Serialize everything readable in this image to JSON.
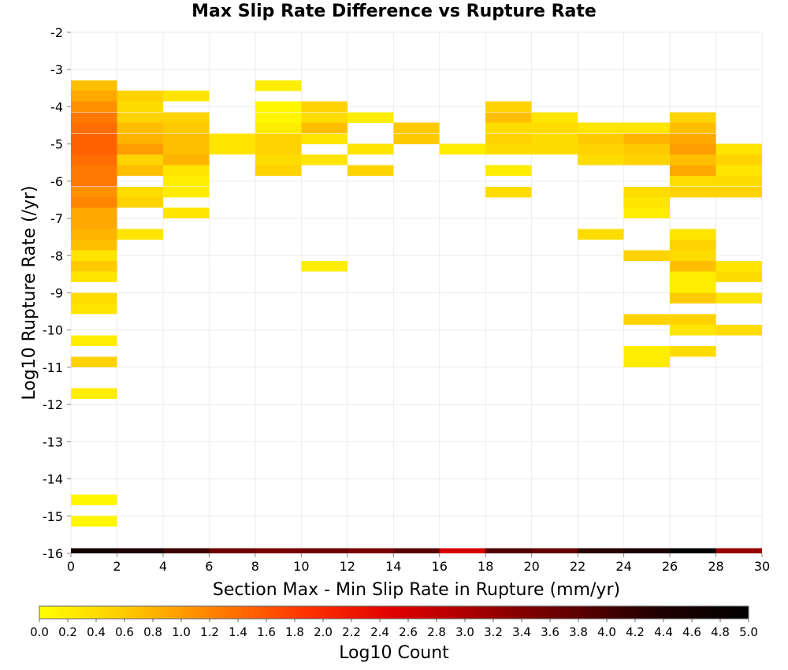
{
  "chart_data": {
    "type": "heatmap",
    "title": "Max Slip Rate Difference vs Rupture Rate",
    "xlabel": "Section Max - Min Slip Rate in Rupture (mm/yr)",
    "ylabel": "Log10 Rupture Rate (/yr)",
    "xlim": [
      0,
      30
    ],
    "ylim": [
      -16,
      -2
    ],
    "x_ticks": [
      "0",
      "2",
      "4",
      "6",
      "8",
      "10",
      "12",
      "14",
      "16",
      "18",
      "20",
      "22",
      "24",
      "26",
      "28",
      "30"
    ],
    "y_ticks": [
      "-2",
      "-3",
      "-4",
      "-5",
      "-6",
      "-7",
      "-8",
      "-9",
      "-10",
      "-11",
      "-12",
      "-13",
      "-14",
      "-15",
      "-16"
    ],
    "x_bin_width": 2,
    "y_bin_height": 0.2857,
    "grid": true,
    "colorbar": {
      "label": "Log10 Count",
      "range": [
        0,
        5
      ],
      "ticks": [
        "0.0",
        "0.2",
        "0.4",
        "0.6",
        "0.8",
        "1.0",
        "1.2",
        "1.4",
        "1.6",
        "1.8",
        "2.0",
        "2.2",
        "2.4",
        "2.6",
        "2.8",
        "3.0",
        "3.2",
        "3.4",
        "3.6",
        "3.8",
        "4.0",
        "4.2",
        "4.4",
        "4.6",
        "4.8",
        "5.0"
      ],
      "colors": [
        "#ffff00",
        "#ffc800",
        "#ff7f00",
        "#ff3300",
        "#e00000",
        "#a00000",
        "#600000",
        "#200000",
        "#000000"
      ]
    },
    "cells": [
      {
        "x": 1,
        "y": -3.43,
        "value": 0.7
      },
      {
        "x": 1,
        "y": -3.71,
        "value": 0.9
      },
      {
        "x": 1,
        "y": -4.0,
        "value": 1.1
      },
      {
        "x": 1,
        "y": -4.29,
        "value": 1.3
      },
      {
        "x": 1,
        "y": -4.57,
        "value": 1.4
      },
      {
        "x": 1,
        "y": -4.86,
        "value": 1.5
      },
      {
        "x": 1,
        "y": -5.14,
        "value": 1.5
      },
      {
        "x": 1,
        "y": -5.43,
        "value": 1.4
      },
      {
        "x": 1,
        "y": -5.71,
        "value": 1.3
      },
      {
        "x": 1,
        "y": -6.0,
        "value": 1.3
      },
      {
        "x": 1,
        "y": -6.29,
        "value": 1.1
      },
      {
        "x": 1,
        "y": -6.57,
        "value": 1.2
      },
      {
        "x": 1,
        "y": -6.86,
        "value": 0.9
      },
      {
        "x": 1,
        "y": -7.14,
        "value": 0.9
      },
      {
        "x": 1,
        "y": -7.43,
        "value": 0.8
      },
      {
        "x": 1,
        "y": -7.71,
        "value": 0.7
      },
      {
        "x": 1,
        "y": -8.0,
        "value": 0.3
      },
      {
        "x": 1,
        "y": -8.29,
        "value": 0.6
      },
      {
        "x": 1,
        "y": -8.57,
        "value": 0.3
      },
      {
        "x": 1,
        "y": -9.14,
        "value": 0.4
      },
      {
        "x": 1,
        "y": -9.43,
        "value": 0.3
      },
      {
        "x": 1,
        "y": -10.29,
        "value": 0.2
      },
      {
        "x": 1,
        "y": -10.86,
        "value": 0.5
      },
      {
        "x": 1,
        "y": -11.71,
        "value": 0.2
      },
      {
        "x": 1,
        "y": -14.57,
        "value": 0.1
      },
      {
        "x": 1,
        "y": -15.14,
        "value": 0.1
      },
      {
        "x": 3,
        "y": -3.71,
        "value": 0.5
      },
      {
        "x": 3,
        "y": -4.0,
        "value": 0.4
      },
      {
        "x": 3,
        "y": -4.29,
        "value": 0.5
      },
      {
        "x": 3,
        "y": -4.57,
        "value": 0.7
      },
      {
        "x": 3,
        "y": -4.86,
        "value": 0.8
      },
      {
        "x": 3,
        "y": -5.14,
        "value": 1.0
      },
      {
        "x": 3,
        "y": -5.43,
        "value": 0.5
      },
      {
        "x": 3,
        "y": -5.71,
        "value": 0.7
      },
      {
        "x": 3,
        "y": -6.29,
        "value": 0.4
      },
      {
        "x": 3,
        "y": -6.57,
        "value": 0.5
      },
      {
        "x": 3,
        "y": -7.43,
        "value": 0.3
      },
      {
        "x": 5,
        "y": -3.71,
        "value": 0.3
      },
      {
        "x": 5,
        "y": -4.29,
        "value": 0.5
      },
      {
        "x": 5,
        "y": -4.57,
        "value": 0.6
      },
      {
        "x": 5,
        "y": -4.86,
        "value": 0.7
      },
      {
        "x": 5,
        "y": -5.14,
        "value": 0.7
      },
      {
        "x": 5,
        "y": -5.43,
        "value": 0.8
      },
      {
        "x": 5,
        "y": -5.71,
        "value": 0.3
      },
      {
        "x": 5,
        "y": -6.0,
        "value": 0.2
      },
      {
        "x": 5,
        "y": -6.29,
        "value": 0.2
      },
      {
        "x": 5,
        "y": -6.86,
        "value": 0.3
      },
      {
        "x": 7,
        "y": -4.86,
        "value": 0.3
      },
      {
        "x": 7,
        "y": -5.14,
        "value": 0.3
      },
      {
        "x": 9,
        "y": -3.43,
        "value": 0.2
      },
      {
        "x": 9,
        "y": -4.0,
        "value": 0.1
      },
      {
        "x": 9,
        "y": -4.29,
        "value": 0.1
      },
      {
        "x": 9,
        "y": -4.57,
        "value": 0.2
      },
      {
        "x": 9,
        "y": -4.86,
        "value": 0.5
      },
      {
        "x": 9,
        "y": -5.14,
        "value": 0.5
      },
      {
        "x": 9,
        "y": -5.43,
        "value": 0.4
      },
      {
        "x": 9,
        "y": -5.71,
        "value": 0.5
      },
      {
        "x": 11,
        "y": -4.0,
        "value": 0.5
      },
      {
        "x": 11,
        "y": -4.29,
        "value": 0.4
      },
      {
        "x": 11,
        "y": -4.57,
        "value": 0.7
      },
      {
        "x": 11,
        "y": -4.86,
        "value": 0.3
      },
      {
        "x": 11,
        "y": -5.43,
        "value": 0.3
      },
      {
        "x": 11,
        "y": -8.29,
        "value": 0.2
      },
      {
        "x": 13,
        "y": -4.29,
        "value": 0.2
      },
      {
        "x": 13,
        "y": -5.14,
        "value": 0.3
      },
      {
        "x": 13,
        "y": -5.71,
        "value": 0.5
      },
      {
        "x": 15,
        "y": -4.57,
        "value": 0.6
      },
      {
        "x": 15,
        "y": -4.86,
        "value": 0.6
      },
      {
        "x": 17,
        "y": -5.14,
        "value": 0.2
      },
      {
        "x": 19,
        "y": -4.0,
        "value": 0.5
      },
      {
        "x": 19,
        "y": -4.29,
        "value": 0.7
      },
      {
        "x": 19,
        "y": -4.57,
        "value": 0.4
      },
      {
        "x": 19,
        "y": -4.86,
        "value": 0.5
      },
      {
        "x": 19,
        "y": -5.14,
        "value": 0.4
      },
      {
        "x": 19,
        "y": -5.71,
        "value": 0.2
      },
      {
        "x": 19,
        "y": -6.29,
        "value": 0.4
      },
      {
        "x": 21,
        "y": -4.29,
        "value": 0.3
      },
      {
        "x": 21,
        "y": -4.57,
        "value": 0.4
      },
      {
        "x": 21,
        "y": -4.86,
        "value": 0.4
      },
      {
        "x": 21,
        "y": -5.14,
        "value": 0.4
      },
      {
        "x": 23,
        "y": -4.57,
        "value": 0.3
      },
      {
        "x": 23,
        "y": -4.86,
        "value": 0.6
      },
      {
        "x": 23,
        "y": -5.14,
        "value": 0.5
      },
      {
        "x": 23,
        "y": -5.43,
        "value": 0.4
      },
      {
        "x": 23,
        "y": -7.43,
        "value": 0.4
      },
      {
        "x": 25,
        "y": -4.57,
        "value": 0.3
      },
      {
        "x": 25,
        "y": -4.86,
        "value": 0.8
      },
      {
        "x": 25,
        "y": -5.14,
        "value": 0.6
      },
      {
        "x": 25,
        "y": -5.43,
        "value": 0.5
      },
      {
        "x": 25,
        "y": -6.29,
        "value": 0.4
      },
      {
        "x": 25,
        "y": -6.57,
        "value": 0.3
      },
      {
        "x": 25,
        "y": -6.86,
        "value": 0.2
      },
      {
        "x": 25,
        "y": -8.0,
        "value": 0.5
      },
      {
        "x": 25,
        "y": -9.71,
        "value": 0.5
      },
      {
        "x": 25,
        "y": -10.57,
        "value": 0.2
      },
      {
        "x": 25,
        "y": -10.86,
        "value": 0.2
      },
      {
        "x": 27,
        "y": -4.29,
        "value": 0.5
      },
      {
        "x": 27,
        "y": -4.57,
        "value": 0.7
      },
      {
        "x": 27,
        "y": -4.86,
        "value": 0.9
      },
      {
        "x": 27,
        "y": -5.14,
        "value": 1.0
      },
      {
        "x": 27,
        "y": -5.43,
        "value": 0.7
      },
      {
        "x": 27,
        "y": -5.71,
        "value": 0.9
      },
      {
        "x": 27,
        "y": -6.0,
        "value": 0.4
      },
      {
        "x": 27,
        "y": -6.29,
        "value": 0.5
      },
      {
        "x": 27,
        "y": -7.43,
        "value": 0.3
      },
      {
        "x": 27,
        "y": -7.71,
        "value": 0.5
      },
      {
        "x": 27,
        "y": -8.0,
        "value": 0.4
      },
      {
        "x": 27,
        "y": -8.29,
        "value": 0.7
      },
      {
        "x": 27,
        "y": -8.57,
        "value": 0.2
      },
      {
        "x": 27,
        "y": -8.86,
        "value": 0.2
      },
      {
        "x": 27,
        "y": -9.14,
        "value": 0.6
      },
      {
        "x": 27,
        "y": -9.71,
        "value": 0.5
      },
      {
        "x": 27,
        "y": -10.0,
        "value": 0.3
      },
      {
        "x": 27,
        "y": -10.57,
        "value": 0.4
      },
      {
        "x": 29,
        "y": -5.14,
        "value": 0.3
      },
      {
        "x": 29,
        "y": -5.43,
        "value": 0.5
      },
      {
        "x": 29,
        "y": -5.71,
        "value": 0.3
      },
      {
        "x": 29,
        "y": -6.0,
        "value": 0.4
      },
      {
        "x": 29,
        "y": -6.29,
        "value": 0.5
      },
      {
        "x": 29,
        "y": -8.29,
        "value": 0.3
      },
      {
        "x": 29,
        "y": -8.57,
        "value": 0.4
      },
      {
        "x": 29,
        "y": -9.14,
        "value": 0.3
      },
      {
        "x": 29,
        "y": -10.0,
        "value": 0.4
      }
    ],
    "bottom_row": {
      "y": -16,
      "x_centers": [
        1,
        3,
        5,
        7,
        9,
        11,
        13,
        15,
        17,
        19,
        21,
        23,
        25,
        27,
        29
      ],
      "values": [
        4.6,
        4.4,
        4.1,
        3.6,
        3.5,
        3.6,
        3.5,
        3.8,
        2.6,
        3.9,
        3.7,
        4.3,
        4.5,
        5.0,
        3.2
      ]
    }
  }
}
